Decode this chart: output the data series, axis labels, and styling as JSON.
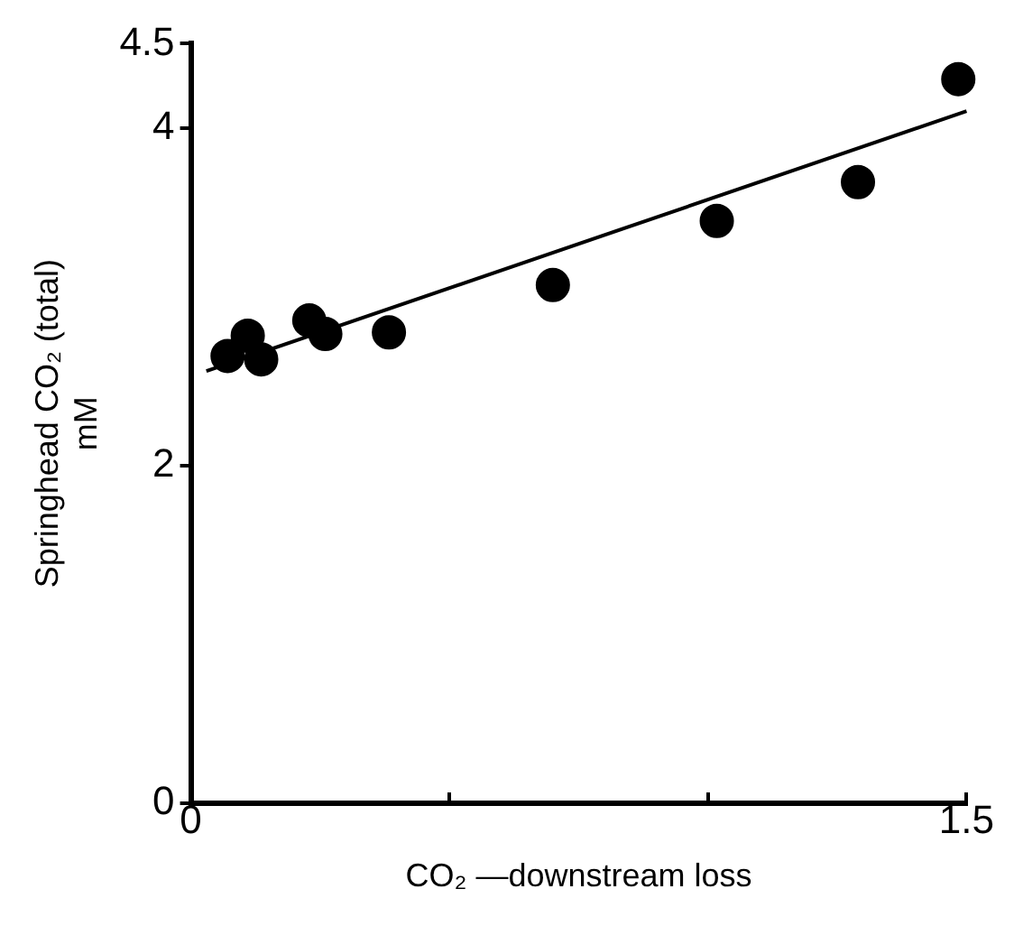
{
  "chart_data": {
    "type": "scatter",
    "xlabel": "CO₂ —downstream loss",
    "ylabel": "Springhead CO₂ (total)\nmM",
    "xlim": [
      0,
      1.5
    ],
    "xticks": [
      0,
      {
        "value": 0.5,
        "label": null
      },
      {
        "value": 1,
        "label": null
      },
      1.5
    ],
    "ylim": [
      0,
      4.5
    ],
    "yticks": [
      0,
      2,
      4,
      4.5
    ],
    "grid": false,
    "legend": false,
    "marker": "circle",
    "series": [
      {
        "type": "scatter",
        "color": "#000000",
        "x": [
          0.071,
          0.11,
          0.136,
          0.229,
          0.26,
          0.383,
          0.7,
          1.017,
          1.29,
          1.484
        ],
        "values": [
          2.65,
          2.77,
          2.63,
          2.86,
          2.78,
          2.79,
          3.07,
          3.45,
          3.68,
          4.29
        ]
      },
      {
        "type": "line",
        "color": "#000000",
        "marker": "none",
        "line_style": "solid",
        "x": [
          0.03,
          1.5
        ],
        "values": [
          2.56,
          4.1
        ]
      }
    ]
  }
}
